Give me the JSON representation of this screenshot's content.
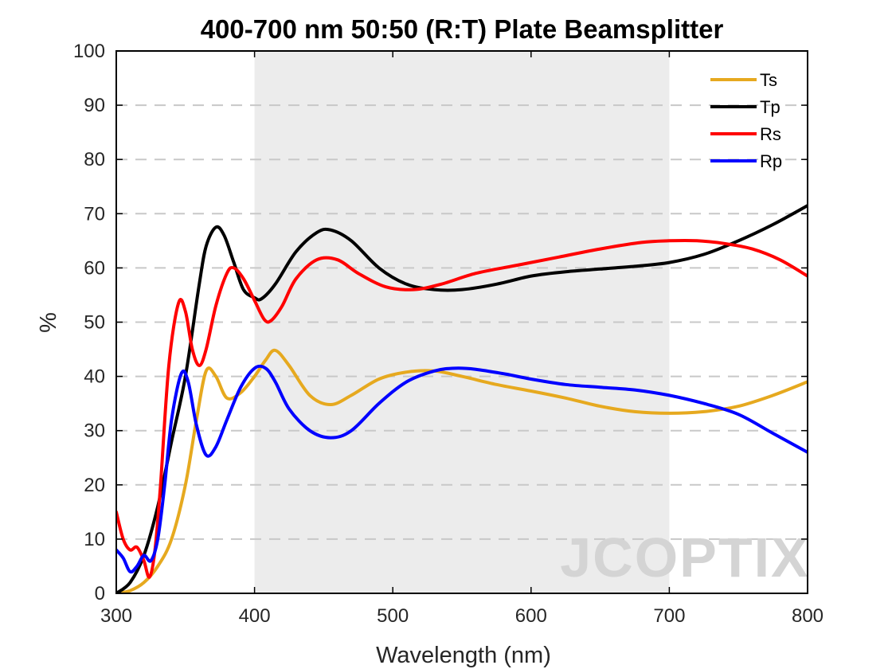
{
  "chart_data": {
    "type": "line",
    "title": "400-700 nm 50:50 (R:T) Plate Beamsplitter",
    "xlabel": "Wavelength (nm)",
    "ylabel": "%",
    "xlim": [
      300,
      800
    ],
    "ylim": [
      0,
      100
    ],
    "x_ticks": [
      "300",
      "400",
      "500",
      "600",
      "700",
      "800"
    ],
    "y_ticks": [
      "0",
      "10",
      "20",
      "30",
      "40",
      "50",
      "60",
      "70",
      "80",
      "90",
      "100"
    ],
    "grid": "horizontal dashed",
    "legend_position": "top-right",
    "highlight_band": [
      400,
      700
    ],
    "watermark": "JCOPTIX",
    "series": [
      {
        "name": "Ts",
        "color": "#E6A91F",
        "points": [
          [
            300,
            0
          ],
          [
            310,
            0.5
          ],
          [
            320,
            2
          ],
          [
            330,
            5
          ],
          [
            340,
            10
          ],
          [
            350,
            20
          ],
          [
            358,
            32
          ],
          [
            365,
            41
          ],
          [
            372,
            40
          ],
          [
            380,
            36
          ],
          [
            390,
            37
          ],
          [
            400,
            40
          ],
          [
            408,
            43
          ],
          [
            415,
            44.8
          ],
          [
            425,
            42
          ],
          [
            440,
            36.5
          ],
          [
            455,
            34.8
          ],
          [
            470,
            36.5
          ],
          [
            490,
            39.5
          ],
          [
            510,
            40.8
          ],
          [
            530,
            41
          ],
          [
            550,
            40
          ],
          [
            575,
            38.5
          ],
          [
            600,
            37.3
          ],
          [
            625,
            36
          ],
          [
            650,
            34.5
          ],
          [
            675,
            33.5
          ],
          [
            700,
            33.2
          ],
          [
            725,
            33.5
          ],
          [
            750,
            34.5
          ],
          [
            775,
            36.5
          ],
          [
            800,
            39
          ]
        ]
      },
      {
        "name": "Tp",
        "color": "#000000",
        "points": [
          [
            300,
            0
          ],
          [
            310,
            2
          ],
          [
            320,
            7
          ],
          [
            330,
            16
          ],
          [
            340,
            28
          ],
          [
            350,
            40
          ],
          [
            360,
            57
          ],
          [
            365,
            64
          ],
          [
            372,
            67.5
          ],
          [
            378,
            66
          ],
          [
            385,
            61
          ],
          [
            392,
            56
          ],
          [
            400,
            54.5
          ],
          [
            405,
            54.3
          ],
          [
            415,
            57
          ],
          [
            430,
            63
          ],
          [
            445,
            66.5
          ],
          [
            455,
            67
          ],
          [
            470,
            65
          ],
          [
            490,
            60
          ],
          [
            510,
            57
          ],
          [
            530,
            56
          ],
          [
            550,
            56
          ],
          [
            575,
            57
          ],
          [
            600,
            58.5
          ],
          [
            625,
            59.3
          ],
          [
            650,
            59.8
          ],
          [
            675,
            60.3
          ],
          [
            700,
            61
          ],
          [
            725,
            62.5
          ],
          [
            750,
            65
          ],
          [
            775,
            68
          ],
          [
            800,
            71.5
          ]
        ]
      },
      {
        "name": "Rs",
        "color": "#FF0000",
        "points": [
          [
            300,
            15
          ],
          [
            305,
            10
          ],
          [
            310,
            8
          ],
          [
            315,
            8.5
          ],
          [
            320,
            6
          ],
          [
            324,
            3
          ],
          [
            328,
            8
          ],
          [
            332,
            20
          ],
          [
            338,
            42
          ],
          [
            345,
            53.5
          ],
          [
            350,
            52
          ],
          [
            355,
            45
          ],
          [
            360,
            42
          ],
          [
            365,
            45
          ],
          [
            372,
            53
          ],
          [
            380,
            59
          ],
          [
            385,
            60
          ],
          [
            392,
            58
          ],
          [
            400,
            54
          ],
          [
            407,
            50.5
          ],
          [
            412,
            50.3
          ],
          [
            420,
            53
          ],
          [
            430,
            58
          ],
          [
            445,
            61.5
          ],
          [
            460,
            61.5
          ],
          [
            475,
            59
          ],
          [
            495,
            56.5
          ],
          [
            515,
            56
          ],
          [
            535,
            57
          ],
          [
            560,
            59
          ],
          [
            590,
            60.5
          ],
          [
            620,
            62
          ],
          [
            650,
            63.5
          ],
          [
            680,
            64.7
          ],
          [
            700,
            65
          ],
          [
            720,
            65
          ],
          [
            740,
            64.5
          ],
          [
            760,
            63.5
          ],
          [
            780,
            61.5
          ],
          [
            800,
            58.5
          ]
        ]
      },
      {
        "name": "Rp",
        "color": "#0000FF",
        "points": [
          [
            300,
            8
          ],
          [
            305,
            6.5
          ],
          [
            310,
            4
          ],
          [
            315,
            5
          ],
          [
            320,
            7
          ],
          [
            325,
            6
          ],
          [
            330,
            10
          ],
          [
            335,
            20
          ],
          [
            340,
            32
          ],
          [
            347,
            40.5
          ],
          [
            352,
            39
          ],
          [
            358,
            31
          ],
          [
            365,
            25.5
          ],
          [
            372,
            27
          ],
          [
            380,
            32
          ],
          [
            390,
            38
          ],
          [
            400,
            41.5
          ],
          [
            408,
            41.5
          ],
          [
            415,
            39
          ],
          [
            425,
            34
          ],
          [
            440,
            30
          ],
          [
            455,
            28.7
          ],
          [
            470,
            30
          ],
          [
            490,
            35
          ],
          [
            510,
            39
          ],
          [
            530,
            41
          ],
          [
            545,
            41.5
          ],
          [
            560,
            41.3
          ],
          [
            580,
            40.5
          ],
          [
            600,
            39.5
          ],
          [
            625,
            38.5
          ],
          [
            650,
            38
          ],
          [
            675,
            37.5
          ],
          [
            700,
            36.5
          ],
          [
            725,
            35
          ],
          [
            750,
            33
          ],
          [
            775,
            29.5
          ],
          [
            800,
            26
          ]
        ]
      }
    ]
  }
}
